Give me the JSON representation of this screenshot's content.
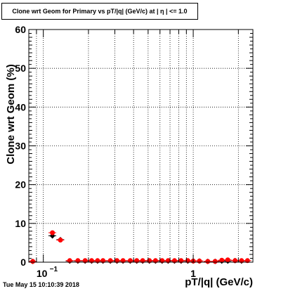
{
  "chart_data": {
    "type": "scatter",
    "title": "Clone wrt Geom for Primary vs pT/|q| (GeV/c) at | η | <= 1.0",
    "xlabel": "pT/|q| (GeV/c)",
    "ylabel": "Clone wrt Geom (%)",
    "xscale": "log",
    "xlim": [
      0.08,
      2.5
    ],
    "ylim": [
      0,
      60
    ],
    "yticks": [
      0,
      10,
      20,
      30,
      40,
      50,
      60
    ],
    "xtick_labels": [
      {
        "value": 0.1,
        "base": "10",
        "exp": "−1"
      },
      {
        "value": 1,
        "base": "1",
        "exp": ""
      }
    ],
    "grid": true,
    "series": [
      {
        "color": "#000000",
        "marker": "diamond",
        "points": [
          [
            0.085,
            0.2
          ],
          [
            0.115,
            6.8
          ],
          [
            0.13,
            5.8
          ],
          [
            0.15,
            0.3
          ],
          [
            0.17,
            0.3
          ],
          [
            0.19,
            0.3
          ],
          [
            0.21,
            0.3
          ],
          [
            0.23,
            0.3
          ],
          [
            0.25,
            0.3
          ],
          [
            0.28,
            0.3
          ],
          [
            0.31,
            0.3
          ],
          [
            0.34,
            0.3
          ],
          [
            0.38,
            0.3
          ],
          [
            0.42,
            0.3
          ],
          [
            0.46,
            0.3
          ],
          [
            0.51,
            0.3
          ],
          [
            0.56,
            0.3
          ],
          [
            0.62,
            0.3
          ],
          [
            0.68,
            0.3
          ],
          [
            0.75,
            0.3
          ],
          [
            0.83,
            0.3
          ],
          [
            0.92,
            0.3
          ],
          [
            1.0,
            0.3
          ],
          [
            1.1,
            0.3
          ],
          [
            1.25,
            0.2
          ],
          [
            1.4,
            0.2
          ],
          [
            1.55,
            0.3
          ],
          [
            1.7,
            0.3
          ],
          [
            1.9,
            0.4
          ],
          [
            2.1,
            0.3
          ]
        ]
      },
      {
        "color": "#ff0000",
        "marker": "circle",
        "points": [
          [
            0.085,
            0.2
          ],
          [
            0.115,
            7.6
          ],
          [
            0.13,
            5.7
          ],
          [
            0.15,
            0.4
          ],
          [
            0.17,
            0.4
          ],
          [
            0.19,
            0.4
          ],
          [
            0.21,
            0.4
          ],
          [
            0.23,
            0.4
          ],
          [
            0.25,
            0.4
          ],
          [
            0.28,
            0.4
          ],
          [
            0.31,
            0.4
          ],
          [
            0.34,
            0.4
          ],
          [
            0.38,
            0.4
          ],
          [
            0.42,
            0.4
          ],
          [
            0.46,
            0.4
          ],
          [
            0.51,
            0.4
          ],
          [
            0.56,
            0.4
          ],
          [
            0.62,
            0.4
          ],
          [
            0.68,
            0.4
          ],
          [
            0.75,
            0.4
          ],
          [
            0.83,
            0.4
          ],
          [
            0.92,
            0.4
          ],
          [
            1.0,
            0.3
          ],
          [
            1.1,
            0.3
          ],
          [
            1.25,
            0.2
          ],
          [
            1.4,
            0.2
          ],
          [
            1.55,
            0.5
          ],
          [
            1.7,
            0.6
          ],
          [
            1.9,
            0.4
          ],
          [
            2.1,
            0.4
          ],
          [
            2.3,
            0.4
          ]
        ]
      }
    ]
  },
  "footer": {
    "timestamp": "Tue May 15 10:10:39 2018"
  }
}
